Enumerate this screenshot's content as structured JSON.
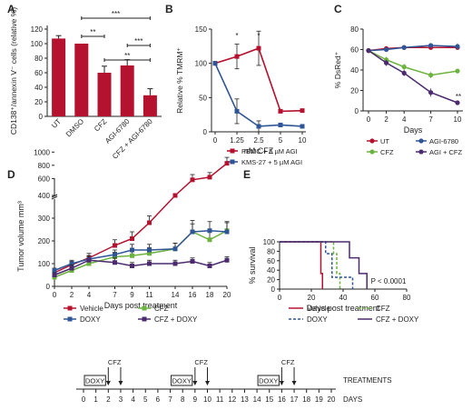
{
  "colors": {
    "red": "#b5122f",
    "blue": "#2f5597",
    "green": "#6db33f",
    "purple": "#4b2a6e",
    "axis": "#222222"
  },
  "chart_data": [
    {
      "id": "A",
      "type": "bar",
      "panel_label": "A",
      "ylabel": "CD138⁺/annexin V⁻ cells (relative %)",
      "ylim": [
        0,
        125
      ],
      "yticks": [
        0,
        20,
        40,
        60,
        80,
        100,
        120
      ],
      "categories": [
        "UT",
        "DMSO",
        "CFZ",
        "AGI-6780",
        "CFZ + AGI-6780"
      ],
      "values": [
        107,
        100,
        60,
        70,
        29
      ],
      "errors": [
        4,
        0,
        9,
        8,
        9
      ],
      "significance": [
        {
          "from": 1,
          "to": 4,
          "label": "***"
        },
        {
          "from": 1,
          "to": 2,
          "label": "**"
        },
        {
          "from": 3,
          "to": 4,
          "label": "***"
        },
        {
          "from": 2,
          "to": 4,
          "label": "**"
        }
      ]
    },
    {
      "id": "B",
      "type": "line",
      "panel_label": "B",
      "xlabel": "nM CFZ",
      "ylabel": "Relative % TMRM⁺",
      "x": [
        "0",
        "1.25",
        "2.5",
        "5",
        "10"
      ],
      "ylim": [
        0,
        150
      ],
      "yticks": [
        0,
        50,
        100,
        150
      ],
      "series": [
        {
          "name": "PBMC + 5 µM AGI",
          "color": "red",
          "values": [
            100,
            110,
            122,
            30,
            31
          ],
          "errors": [
            0,
            18,
            25,
            0,
            0
          ]
        },
        {
          "name": "KMS-27 + 5 µM AGI",
          "color": "blue",
          "values": [
            100,
            30,
            8,
            10,
            8
          ],
          "errors": [
            0,
            18,
            8,
            0,
            0
          ]
        }
      ],
      "annotations": [
        {
          "x": "1.25",
          "label": "*"
        },
        {
          "x": "2.5",
          "label": "*"
        }
      ]
    },
    {
      "id": "C",
      "type": "line",
      "panel_label": "C",
      "xlabel": "Days",
      "ylabel": "% DsRed⁺",
      "x": [
        0,
        2,
        4,
        7,
        10
      ],
      "ylim": [
        0,
        80
      ],
      "yticks": [
        0,
        20,
        40,
        60,
        80
      ],
      "series": [
        {
          "name": "UT",
          "color": "red",
          "values": [
            59,
            61,
            62,
            62,
            62
          ],
          "errors": [
            1,
            2,
            1,
            2,
            2
          ]
        },
        {
          "name": "AGI-6780",
          "color": "blue",
          "values": [
            59,
            60,
            62,
            64,
            63
          ],
          "errors": [
            1,
            2,
            1,
            2,
            3
          ]
        },
        {
          "name": "CFZ",
          "color": "green",
          "values": [
            59,
            50,
            43,
            35,
            39
          ],
          "errors": [
            1,
            3,
            3,
            3,
            1
          ]
        },
        {
          "name": "AGI + CFZ",
          "color": "purple",
          "values": [
            59,
            47,
            37,
            18,
            8
          ],
          "errors": [
            1,
            3,
            3,
            4,
            2
          ]
        }
      ],
      "annotations": [
        {
          "x": 10,
          "label": "**"
        }
      ]
    },
    {
      "id": "D",
      "type": "line",
      "panel_label": "D",
      "xlabel": "Days post treatment",
      "ylabel": "Tumor volume mm³",
      "x": [
        0,
        2,
        4,
        7,
        9,
        11,
        14,
        16,
        18,
        20
      ],
      "ylim": [
        0,
        1000
      ],
      "yticks_lower": [
        0,
        100,
        200,
        300,
        400
      ],
      "yticks_upper": [
        600,
        800,
        1000
      ],
      "axis_break": "between 400 and 500",
      "series": [
        {
          "name": "Vehicle",
          "color": "red",
          "values": [
            60,
            95,
            125,
            180,
            210,
            280,
            400,
            580,
            620,
            830
          ],
          "errors": [
            10,
            15,
            20,
            25,
            30,
            30,
            0,
            80,
            70,
            90
          ]
        },
        {
          "name": "CFZ",
          "color": "green",
          "values": [
            40,
            70,
            100,
            130,
            135,
            145,
            165,
            240,
            205,
            245
          ],
          "errors": [
            10,
            15,
            20,
            20,
            20,
            25,
            25,
            50,
            45,
            40
          ]
        },
        {
          "name": "DOXY",
          "color": "blue",
          "values": [
            70,
            100,
            120,
            140,
            160,
            160,
            165,
            240,
            245,
            240
          ],
          "errors": [
            10,
            15,
            15,
            20,
            25,
            25,
            25,
            35,
            40,
            40
          ]
        },
        {
          "name": "CFZ + DOXY",
          "color": "purple",
          "values": [
            50,
            80,
            115,
            105,
            90,
            100,
            100,
            110,
            90,
            115
          ],
          "errors": [
            10,
            15,
            20,
            20,
            15,
            15,
            15,
            15,
            15,
            15
          ]
        }
      ]
    },
    {
      "id": "E",
      "type": "line",
      "panel_label": "E",
      "xlabel": "Days post treatment",
      "ylabel": "% survival",
      "xlim": [
        0,
        80
      ],
      "xticks": [
        0,
        20,
        40,
        60,
        80
      ],
      "ylim": [
        0,
        100
      ],
      "yticks": [
        0,
        20,
        40,
        60,
        80,
        100
      ],
      "annotation": "P < 0.0001",
      "series": [
        {
          "name": "Vehicle",
          "color": "red",
          "style": "solid",
          "steps": [
            [
              0,
              100
            ],
            [
              26,
              100
            ],
            [
              26,
              33
            ],
            [
              27,
              33
            ],
            [
              27,
              0
            ]
          ]
        },
        {
          "name": "CFZ",
          "color": "green",
          "style": "dashed",
          "steps": [
            [
              0,
              100
            ],
            [
              34,
              100
            ],
            [
              34,
              75
            ],
            [
              36,
              75
            ],
            [
              36,
              33
            ],
            [
              38,
              33
            ],
            [
              38,
              0
            ]
          ]
        },
        {
          "name": "DOXY",
          "color": "blue",
          "style": "dashed",
          "steps": [
            [
              0,
              100
            ],
            [
              29,
              100
            ],
            [
              29,
              75
            ],
            [
              33,
              75
            ],
            [
              33,
              25
            ],
            [
              46,
              25
            ],
            [
              46,
              0
            ]
          ]
        },
        {
          "name": "CFZ + DOXY",
          "color": "purple",
          "style": "solid",
          "steps": [
            [
              0,
              100
            ],
            [
              44,
              100
            ],
            [
              44,
              66
            ],
            [
              50,
              66
            ],
            [
              50,
              33
            ],
            [
              55,
              33
            ],
            [
              55,
              0
            ]
          ]
        }
      ]
    }
  ],
  "timeline": {
    "title": "TREATMENTS",
    "xlabel": "DAYS",
    "ticks": [
      0,
      1,
      2,
      3,
      4,
      5,
      6,
      7,
      8,
      9,
      10,
      11,
      12,
      13,
      14,
      15,
      16,
      17,
      18,
      19,
      20
    ],
    "doxy_boxes": [
      {
        "start": 0,
        "end": 2,
        "label": "DOXY"
      },
      {
        "start": 7,
        "end": 9,
        "label": "DOXY"
      },
      {
        "start": 14,
        "end": 16,
        "label": "DOXY"
      }
    ],
    "cfz_days": [
      2,
      3,
      9,
      10,
      16,
      17
    ],
    "cfz_labels": [
      {
        "day": 2.5,
        "label": "CFZ"
      },
      {
        "day": 9.5,
        "label": "CFZ"
      },
      {
        "day": 16.5,
        "label": "CFZ"
      }
    ]
  }
}
